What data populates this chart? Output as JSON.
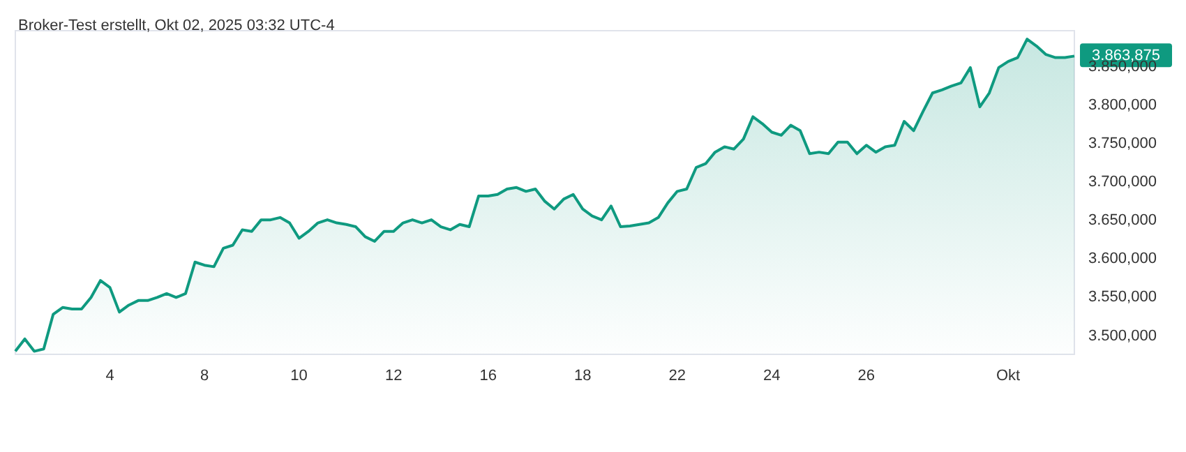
{
  "chart_data": {
    "type": "area",
    "title": "Broker-Test erstellt, Okt 02, 2025 03:32 UTC-4",
    "categories": [
      null,
      null,
      null,
      null,
      null,
      null,
      null,
      null,
      null,
      null,
      "4",
      null,
      null,
      null,
      null,
      null,
      null,
      null,
      null,
      null,
      "8",
      null,
      null,
      null,
      null,
      null,
      null,
      null,
      null,
      null,
      "10",
      null,
      null,
      null,
      null,
      null,
      null,
      null,
      null,
      null,
      "12",
      null,
      null,
      null,
      null,
      null,
      null,
      null,
      null,
      null,
      "16",
      null,
      null,
      null,
      null,
      null,
      null,
      null,
      null,
      null,
      "18",
      null,
      null,
      null,
      null,
      null,
      null,
      null,
      null,
      null,
      "22",
      null,
      null,
      null,
      null,
      null,
      null,
      null,
      null,
      null,
      "24",
      null,
      null,
      null,
      null,
      null,
      null,
      null,
      null,
      null,
      "26",
      null,
      null,
      null,
      null,
      null,
      null,
      null,
      null,
      null,
      null,
      null,
      null,
      null,
      null,
      "Okt",
      null,
      null,
      null,
      null,
      null,
      null,
      null
    ],
    "series": [
      {
        "color": "#0f9a80",
        "values": [
          3480,
          3496,
          3480,
          3483,
          3528,
          3537,
          3535,
          3535,
          3550,
          3572,
          3563,
          3531,
          3540,
          3546,
          3546,
          3550,
          3555,
          3550,
          3555,
          3596,
          3592,
          3590,
          3614,
          3618,
          3638,
          3636,
          3651,
          3651,
          3654,
          3647,
          3627,
          3636,
          3647,
          3651,
          3647,
          3645,
          3642,
          3629,
          3623,
          3636,
          3636,
          3647,
          3651,
          3647,
          3651,
          3642,
          3638,
          3645,
          3642,
          3682,
          3682,
          3684,
          3691,
          3693,
          3688,
          3691,
          3675,
          3665,
          3678,
          3684,
          3665,
          3656,
          3651,
          3669,
          3642,
          3643,
          3645,
          3647,
          3654,
          3673,
          3688,
          3691,
          3719,
          3724,
          3739,
          3746,
          3743,
          3756,
          3785,
          3776,
          3765,
          3761,
          3774,
          3767,
          3737,
          3739,
          3737,
          3752,
          3752,
          3737,
          3748,
          3739,
          3746,
          3748,
          3779,
          3767,
          3792,
          3816,
          3820,
          3825,
          3829,
          3849,
          3798,
          3816,
          3849,
          3857,
          3862,
          3886,
          3877,
          3866,
          3862,
          3862,
          3864
        ]
      }
    ],
    "ylim": [
      3476,
      3897
    ],
    "yticks": [
      {
        "value": 3500,
        "label": "3.500,000"
      },
      {
        "value": 3550,
        "label": "3.550,000"
      },
      {
        "value": 3600,
        "label": "3.600,000"
      },
      {
        "value": 3650,
        "label": "3.650,000"
      },
      {
        "value": 3700,
        "label": "3.700,000"
      },
      {
        "value": 3750,
        "label": "3.750,000"
      },
      {
        "value": 3800,
        "label": "3.800,000"
      },
      {
        "value": 3850,
        "label": "3.850,000"
      }
    ],
    "annotations": [
      "3.863,875"
    ]
  }
}
